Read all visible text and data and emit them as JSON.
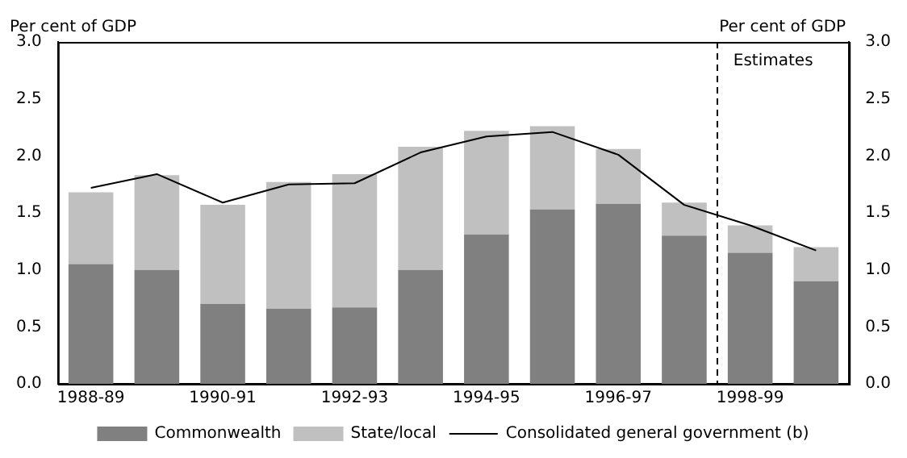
{
  "chart_data": {
    "type": "bar",
    "stacked": true,
    "categories": [
      "1988-89",
      null,
      "1990-91",
      null,
      "1992-93",
      null,
      "1994-95",
      null,
      "1996-97",
      null,
      "1998-99",
      null
    ],
    "series": [
      {
        "name": "Commonwealth",
        "color": "#808080",
        "values": [
          1.05,
          1.0,
          0.7,
          0.66,
          0.67,
          1.0,
          1.31,
          1.53,
          1.58,
          1.3,
          1.15,
          0.9
        ]
      },
      {
        "name": "State/local",
        "color": "#c0c0c0",
        "values": [
          0.63,
          0.83,
          0.87,
          1.11,
          1.17,
          1.08,
          0.91,
          0.73,
          0.48,
          0.29,
          0.24,
          0.3
        ]
      },
      {
        "name": "Consolidated general government (b)",
        "type": "line",
        "color": "#000000",
        "values": [
          1.72,
          1.84,
          1.59,
          1.75,
          1.76,
          2.03,
          2.17,
          2.21,
          2.01,
          1.57,
          1.39,
          1.17
        ]
      }
    ],
    "ylabel": "Per cent of GDP",
    "y2label": "Per cent of GDP",
    "ylim": [
      0,
      3
    ],
    "yticks": [
      {
        "value": 0,
        "label": "0.0"
      },
      {
        "value": 0.5,
        "label": "0.5"
      },
      {
        "value": 1,
        "label": "1.0"
      },
      {
        "value": 1.5,
        "label": "1.5"
      },
      {
        "value": 2,
        "label": "2.0"
      },
      {
        "value": 2.5,
        "label": "2.5"
      },
      {
        "value": 3,
        "label": "3.0"
      }
    ],
    "y2lim": [
      0,
      3
    ],
    "y2ticks": [
      {
        "value": 0,
        "label": "0.0"
      },
      {
        "value": 0.5,
        "label": "0.5"
      },
      {
        "value": 1,
        "label": "1.0"
      },
      {
        "value": 1.5,
        "label": "1.5"
      },
      {
        "value": 2,
        "label": "2.0"
      },
      {
        "value": 2.5,
        "label": "2.5"
      },
      {
        "value": 3,
        "label": "3.0"
      }
    ],
    "annotations": [
      "Estimates"
    ],
    "grid": false,
    "legend": "bottom",
    "marker": "none"
  }
}
